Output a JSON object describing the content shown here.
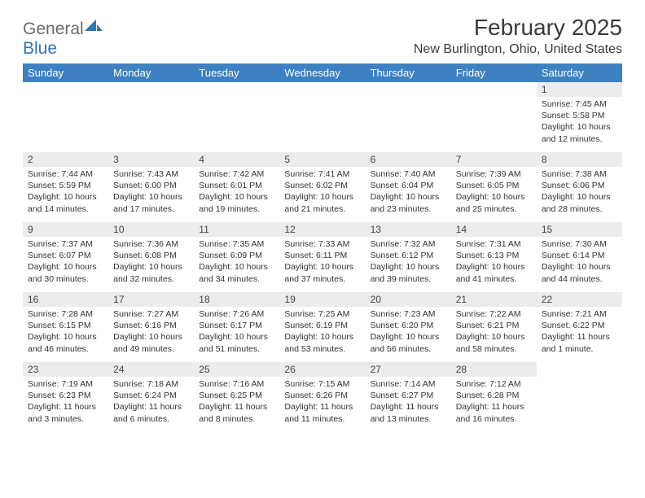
{
  "logo": {
    "word1": "General",
    "word2": "Blue",
    "word1_color": "#6a6a6a",
    "word2_color": "#2f74b5",
    "sail_color": "#2f74b5"
  },
  "title": "February 2025",
  "location": "New Burlington, Ohio, United States",
  "colors": {
    "header_bg": "#3d81c2",
    "header_text": "#ffffff",
    "daynum_bg": "#ececec",
    "body_text": "#333333",
    "page_bg": "#ffffff"
  },
  "weekdays": [
    "Sunday",
    "Monday",
    "Tuesday",
    "Wednesday",
    "Thursday",
    "Friday",
    "Saturday"
  ],
  "weeks": [
    [
      null,
      null,
      null,
      null,
      null,
      null,
      {
        "n": "1",
        "sr": "Sunrise: 7:45 AM",
        "ss": "Sunset: 5:58 PM",
        "dl": "Daylight: 10 hours and 12 minutes."
      }
    ],
    [
      {
        "n": "2",
        "sr": "Sunrise: 7:44 AM",
        "ss": "Sunset: 5:59 PM",
        "dl": "Daylight: 10 hours and 14 minutes."
      },
      {
        "n": "3",
        "sr": "Sunrise: 7:43 AM",
        "ss": "Sunset: 6:00 PM",
        "dl": "Daylight: 10 hours and 17 minutes."
      },
      {
        "n": "4",
        "sr": "Sunrise: 7:42 AM",
        "ss": "Sunset: 6:01 PM",
        "dl": "Daylight: 10 hours and 19 minutes."
      },
      {
        "n": "5",
        "sr": "Sunrise: 7:41 AM",
        "ss": "Sunset: 6:02 PM",
        "dl": "Daylight: 10 hours and 21 minutes."
      },
      {
        "n": "6",
        "sr": "Sunrise: 7:40 AM",
        "ss": "Sunset: 6:04 PM",
        "dl": "Daylight: 10 hours and 23 minutes."
      },
      {
        "n": "7",
        "sr": "Sunrise: 7:39 AM",
        "ss": "Sunset: 6:05 PM",
        "dl": "Daylight: 10 hours and 25 minutes."
      },
      {
        "n": "8",
        "sr": "Sunrise: 7:38 AM",
        "ss": "Sunset: 6:06 PM",
        "dl": "Daylight: 10 hours and 28 minutes."
      }
    ],
    [
      {
        "n": "9",
        "sr": "Sunrise: 7:37 AM",
        "ss": "Sunset: 6:07 PM",
        "dl": "Daylight: 10 hours and 30 minutes."
      },
      {
        "n": "10",
        "sr": "Sunrise: 7:36 AM",
        "ss": "Sunset: 6:08 PM",
        "dl": "Daylight: 10 hours and 32 minutes."
      },
      {
        "n": "11",
        "sr": "Sunrise: 7:35 AM",
        "ss": "Sunset: 6:09 PM",
        "dl": "Daylight: 10 hours and 34 minutes."
      },
      {
        "n": "12",
        "sr": "Sunrise: 7:33 AM",
        "ss": "Sunset: 6:11 PM",
        "dl": "Daylight: 10 hours and 37 minutes."
      },
      {
        "n": "13",
        "sr": "Sunrise: 7:32 AM",
        "ss": "Sunset: 6:12 PM",
        "dl": "Daylight: 10 hours and 39 minutes."
      },
      {
        "n": "14",
        "sr": "Sunrise: 7:31 AM",
        "ss": "Sunset: 6:13 PM",
        "dl": "Daylight: 10 hours and 41 minutes."
      },
      {
        "n": "15",
        "sr": "Sunrise: 7:30 AM",
        "ss": "Sunset: 6:14 PM",
        "dl": "Daylight: 10 hours and 44 minutes."
      }
    ],
    [
      {
        "n": "16",
        "sr": "Sunrise: 7:28 AM",
        "ss": "Sunset: 6:15 PM",
        "dl": "Daylight: 10 hours and 46 minutes."
      },
      {
        "n": "17",
        "sr": "Sunrise: 7:27 AM",
        "ss": "Sunset: 6:16 PM",
        "dl": "Daylight: 10 hours and 49 minutes."
      },
      {
        "n": "18",
        "sr": "Sunrise: 7:26 AM",
        "ss": "Sunset: 6:17 PM",
        "dl": "Daylight: 10 hours and 51 minutes."
      },
      {
        "n": "19",
        "sr": "Sunrise: 7:25 AM",
        "ss": "Sunset: 6:19 PM",
        "dl": "Daylight: 10 hours and 53 minutes."
      },
      {
        "n": "20",
        "sr": "Sunrise: 7:23 AM",
        "ss": "Sunset: 6:20 PM",
        "dl": "Daylight: 10 hours and 56 minutes."
      },
      {
        "n": "21",
        "sr": "Sunrise: 7:22 AM",
        "ss": "Sunset: 6:21 PM",
        "dl": "Daylight: 10 hours and 58 minutes."
      },
      {
        "n": "22",
        "sr": "Sunrise: 7:21 AM",
        "ss": "Sunset: 6:22 PM",
        "dl": "Daylight: 11 hours and 1 minute."
      }
    ],
    [
      {
        "n": "23",
        "sr": "Sunrise: 7:19 AM",
        "ss": "Sunset: 6:23 PM",
        "dl": "Daylight: 11 hours and 3 minutes."
      },
      {
        "n": "24",
        "sr": "Sunrise: 7:18 AM",
        "ss": "Sunset: 6:24 PM",
        "dl": "Daylight: 11 hours and 6 minutes."
      },
      {
        "n": "25",
        "sr": "Sunrise: 7:16 AM",
        "ss": "Sunset: 6:25 PM",
        "dl": "Daylight: 11 hours and 8 minutes."
      },
      {
        "n": "26",
        "sr": "Sunrise: 7:15 AM",
        "ss": "Sunset: 6:26 PM",
        "dl": "Daylight: 11 hours and 11 minutes."
      },
      {
        "n": "27",
        "sr": "Sunrise: 7:14 AM",
        "ss": "Sunset: 6:27 PM",
        "dl": "Daylight: 11 hours and 13 minutes."
      },
      {
        "n": "28",
        "sr": "Sunrise: 7:12 AM",
        "ss": "Sunset: 6:28 PM",
        "dl": "Daylight: 11 hours and 16 minutes."
      },
      null
    ]
  ]
}
